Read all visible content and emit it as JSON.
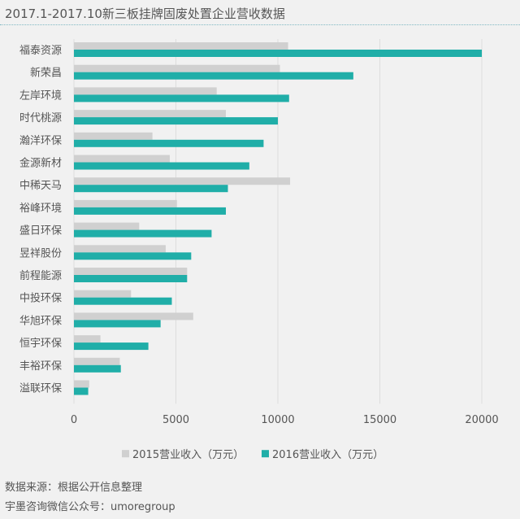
{
  "header": {
    "title": "2017.1-2017.10新三板挂牌固废处置企业营收数据"
  },
  "footer": {
    "source": "数据来源：根据公开信息整理",
    "wechat": "宇墨咨询微信公众号：umoregroup"
  },
  "colors": {
    "series_2015": "#d0d0d0",
    "series_2016": "#20aea8",
    "grid": "#dddddd",
    "text": "#555555"
  },
  "chart_data": {
    "type": "bar",
    "orientation": "horizontal",
    "categories": [
      "福泰资源",
      "新荣昌",
      "左岸环境",
      "时代桃源",
      "瀚洋环保",
      "金源新材",
      "中稀天马",
      "裕峰环境",
      "盛日环保",
      "昱祥股份",
      "前程能源",
      "中投环保",
      "华旭环保",
      "恒宇环保",
      "丰裕环保",
      "溢联环保"
    ],
    "series": [
      {
        "name": "2015营业收入（万元）",
        "values": [
          10500,
          10100,
          7000,
          7450,
          3850,
          4700,
          10600,
          5050,
          3200,
          4500,
          5550,
          2800,
          5850,
          1300,
          2250,
          750
        ]
      },
      {
        "name": "2016营业收入（万元）",
        "values": [
          20000,
          13700,
          10550,
          10000,
          9300,
          8600,
          7550,
          7450,
          6750,
          5750,
          5550,
          4800,
          4250,
          3650,
          2300,
          700
        ]
      }
    ],
    "xlim": [
      0,
      20000
    ],
    "xticks": [
      "0",
      "5000",
      "10000",
      "15000",
      "20000"
    ],
    "grid": true,
    "legend_position": "bottom"
  }
}
